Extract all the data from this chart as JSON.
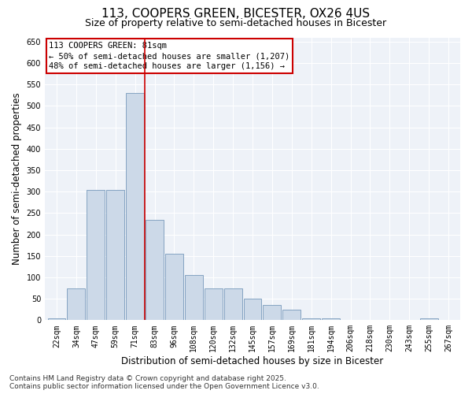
{
  "title_line1": "113, COOPERS GREEN, BICESTER, OX26 4US",
  "title_line2": "Size of property relative to semi-detached houses in Bicester",
  "xlabel": "Distribution of semi-detached houses by size in Bicester",
  "ylabel": "Number of semi-detached properties",
  "bin_labels": [
    "22sqm",
    "34sqm",
    "47sqm",
    "59sqm",
    "71sqm",
    "83sqm",
    "96sqm",
    "108sqm",
    "120sqm",
    "132sqm",
    "145sqm",
    "157sqm",
    "169sqm",
    "181sqm",
    "194sqm",
    "206sqm",
    "218sqm",
    "230sqm",
    "243sqm",
    "255sqm",
    "267sqm"
  ],
  "bar_values": [
    5,
    75,
    305,
    305,
    530,
    235,
    155,
    105,
    75,
    75,
    50,
    35,
    25,
    5,
    5,
    0,
    0,
    0,
    0,
    5,
    0
  ],
  "bar_color": "#ccd9e8",
  "bar_edge_color": "#7799bb",
  "property_label": "113 COOPERS GREEN: 81sqm",
  "annotation_smaller": "← 50% of semi-detached houses are smaller (1,207)",
  "annotation_larger": "48% of semi-detached houses are larger (1,156) →",
  "vline_color": "#cc0000",
  "vline_x": 4.5,
  "box_edge_color": "#cc0000",
  "ylim": [
    0,
    660
  ],
  "yticks": [
    0,
    50,
    100,
    150,
    200,
    250,
    300,
    350,
    400,
    450,
    500,
    550,
    600,
    650
  ],
  "background_color": "#eef2f8",
  "grid_color": "#ffffff",
  "footer_line1": "Contains HM Land Registry data © Crown copyright and database right 2025.",
  "footer_line2": "Contains public sector information licensed under the Open Government Licence v3.0.",
  "title_fontsize": 11,
  "subtitle_fontsize": 9,
  "axis_label_fontsize": 8.5,
  "tick_fontsize": 7,
  "annotation_fontsize": 7.5,
  "footer_fontsize": 6.5
}
